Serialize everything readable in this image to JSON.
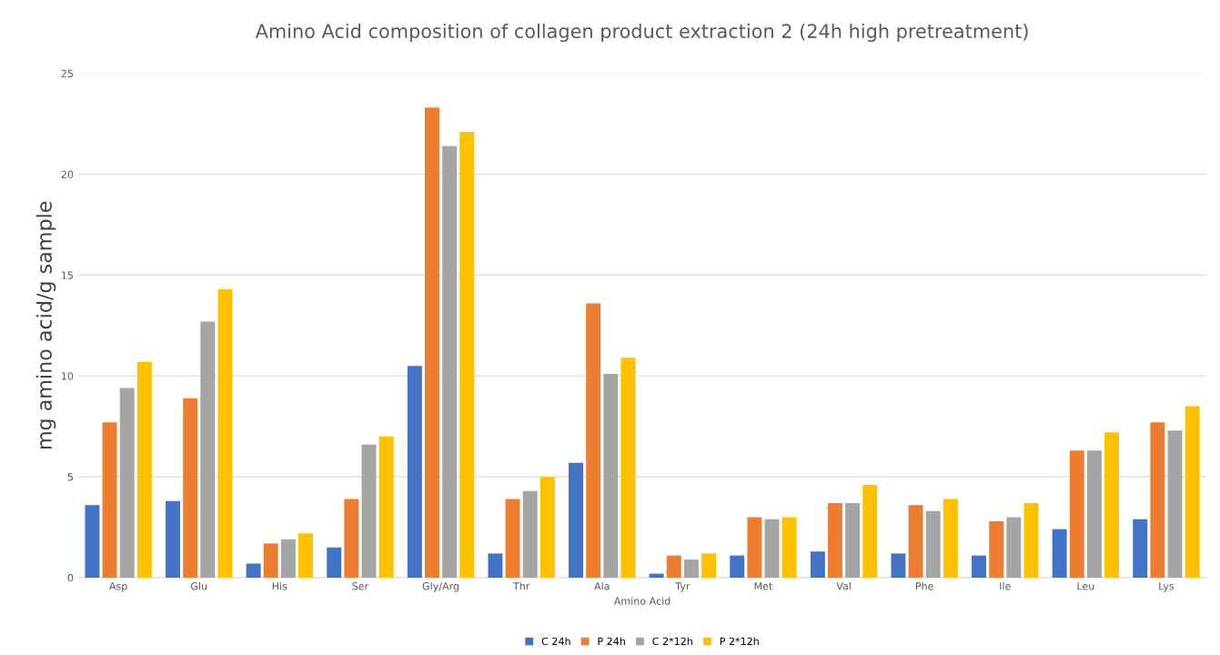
{
  "chart_data": {
    "type": "bar",
    "title": "Amino Acid composition of collagen product extraction 2 (24h high pretreatment)",
    "xlabel": "Amino Acid",
    "ylabel": "mg amino acid/g sample",
    "categories": [
      "Asp",
      "Glu",
      "His",
      "Ser",
      "Gly/Arg",
      "Thr",
      "Ala",
      "Tyr",
      "Met",
      "Val",
      "Phe",
      "Ile",
      "Leu",
      "Lys"
    ],
    "series": [
      {
        "name": "C 24h",
        "color": "#4472c4",
        "values": [
          3.6,
          3.8,
          0.7,
          1.5,
          10.5,
          1.2,
          5.7,
          0.2,
          1.1,
          1.3,
          1.2,
          1.1,
          2.4,
          2.9
        ]
      },
      {
        "name": "P 24h",
        "color": "#ed7d31",
        "values": [
          7.7,
          8.9,
          1.7,
          3.9,
          23.3,
          3.9,
          13.6,
          1.1,
          3.0,
          3.7,
          3.6,
          2.8,
          6.3,
          7.7
        ]
      },
      {
        "name": "C 2*12h",
        "color": "#a5a5a5",
        "values": [
          9.4,
          12.7,
          1.9,
          6.6,
          21.4,
          4.3,
          10.1,
          0.9,
          2.9,
          3.7,
          3.3,
          3.0,
          6.3,
          7.3
        ]
      },
      {
        "name": "P 2*12h",
        "color": "#ffc000",
        "values": [
          10.7,
          14.3,
          2.2,
          7.0,
          22.1,
          5.0,
          10.9,
          1.2,
          3.0,
          4.6,
          3.9,
          3.7,
          7.2,
          8.5
        ]
      }
    ],
    "ylim": [
      0,
      25
    ],
    "yticks": [
      0,
      5,
      10,
      15,
      20,
      25
    ],
    "grid": "y",
    "legend": "bottom"
  }
}
